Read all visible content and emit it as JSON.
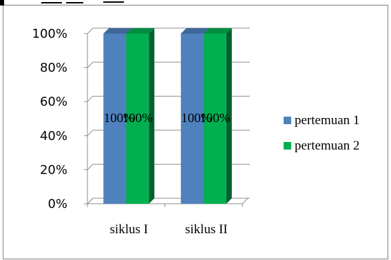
{
  "chart_data": {
    "type": "bar",
    "style": "3d-clustered-column",
    "categories": [
      "siklus I",
      "siklus II"
    ],
    "series": [
      {
        "name": "pertemuan 1",
        "values": [
          100,
          100
        ],
        "color": "#4f81bd"
      },
      {
        "name": "pertemuan 2",
        "values": [
          100,
          100
        ],
        "color": "#00b050"
      }
    ],
    "data_labels": [
      [
        "100%",
        "100%"
      ],
      [
        "100%",
        "100%"
      ]
    ],
    "y_ticks": [
      "0%",
      "20%",
      "40%",
      "60%",
      "80%",
      "100%"
    ],
    "ylim": [
      0,
      100
    ],
    "title": "",
    "xlabel": "",
    "ylabel": "",
    "grid": true,
    "legend_position": "right"
  }
}
